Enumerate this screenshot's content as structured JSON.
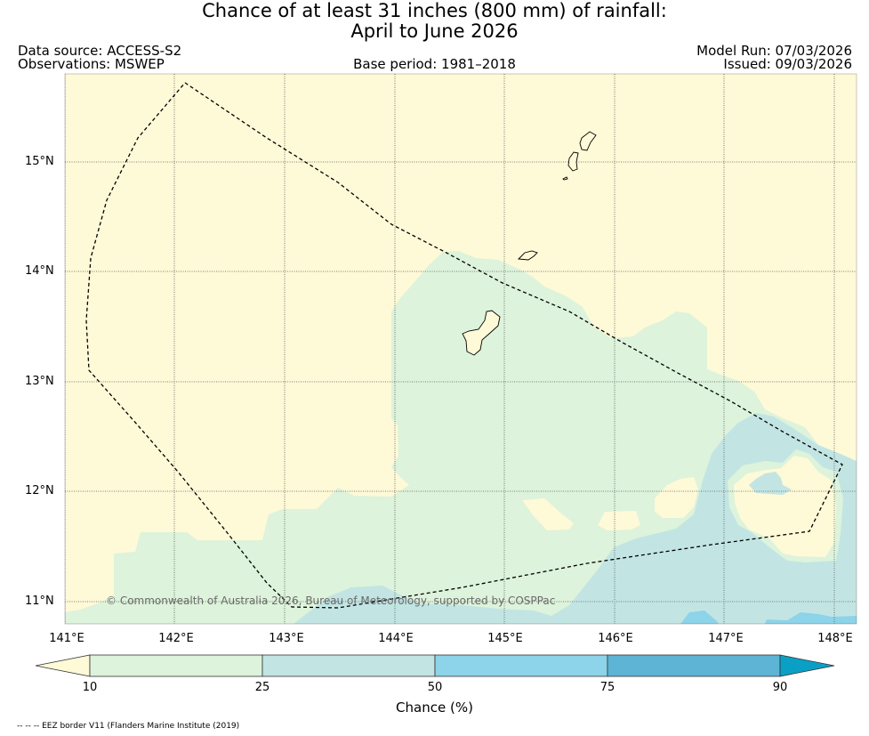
{
  "title": {
    "line1": "Chance of at least 31 inches (800  mm) of rainfall:",
    "line2": "April to June 2026"
  },
  "header": {
    "data_source": "Data source: ACCESS-S2",
    "observations": "Observations: MSWEP",
    "base_period": "Base period: 1981–2018",
    "model_run": "Model Run: 07/03/2026",
    "issued": "Issued: 09/03/2026"
  },
  "map": {
    "region": "Guam and Northern Mariana Islands",
    "lat_ticks": [
      "15°N",
      "14°N",
      "13°N",
      "12°N",
      "11°N"
    ],
    "lon_ticks": [
      "141°E",
      "142°E",
      "143°E",
      "144°E",
      "145°E",
      "146°E",
      "147°E",
      "148°E"
    ],
    "copyright": "© Commonwealth of Australia 2026, Bureau of Meteorology, supported by COSPPac"
  },
  "colorbar": {
    "label": "Chance (%)",
    "ticks": [
      "10",
      "25",
      "50",
      "75",
      "90"
    ],
    "colors": {
      "below_10": "#fef9d7",
      "10_25": "#ddf3db",
      "25_50": "#c2e5e4",
      "50_75": "#8dd3ea",
      "75_90": "#5db4d5",
      "above_90": "#0aa0c6"
    }
  },
  "footer": {
    "eez_note": "-- -- -- EEZ border V11 (Flanders Marine Institute (2019)"
  }
}
